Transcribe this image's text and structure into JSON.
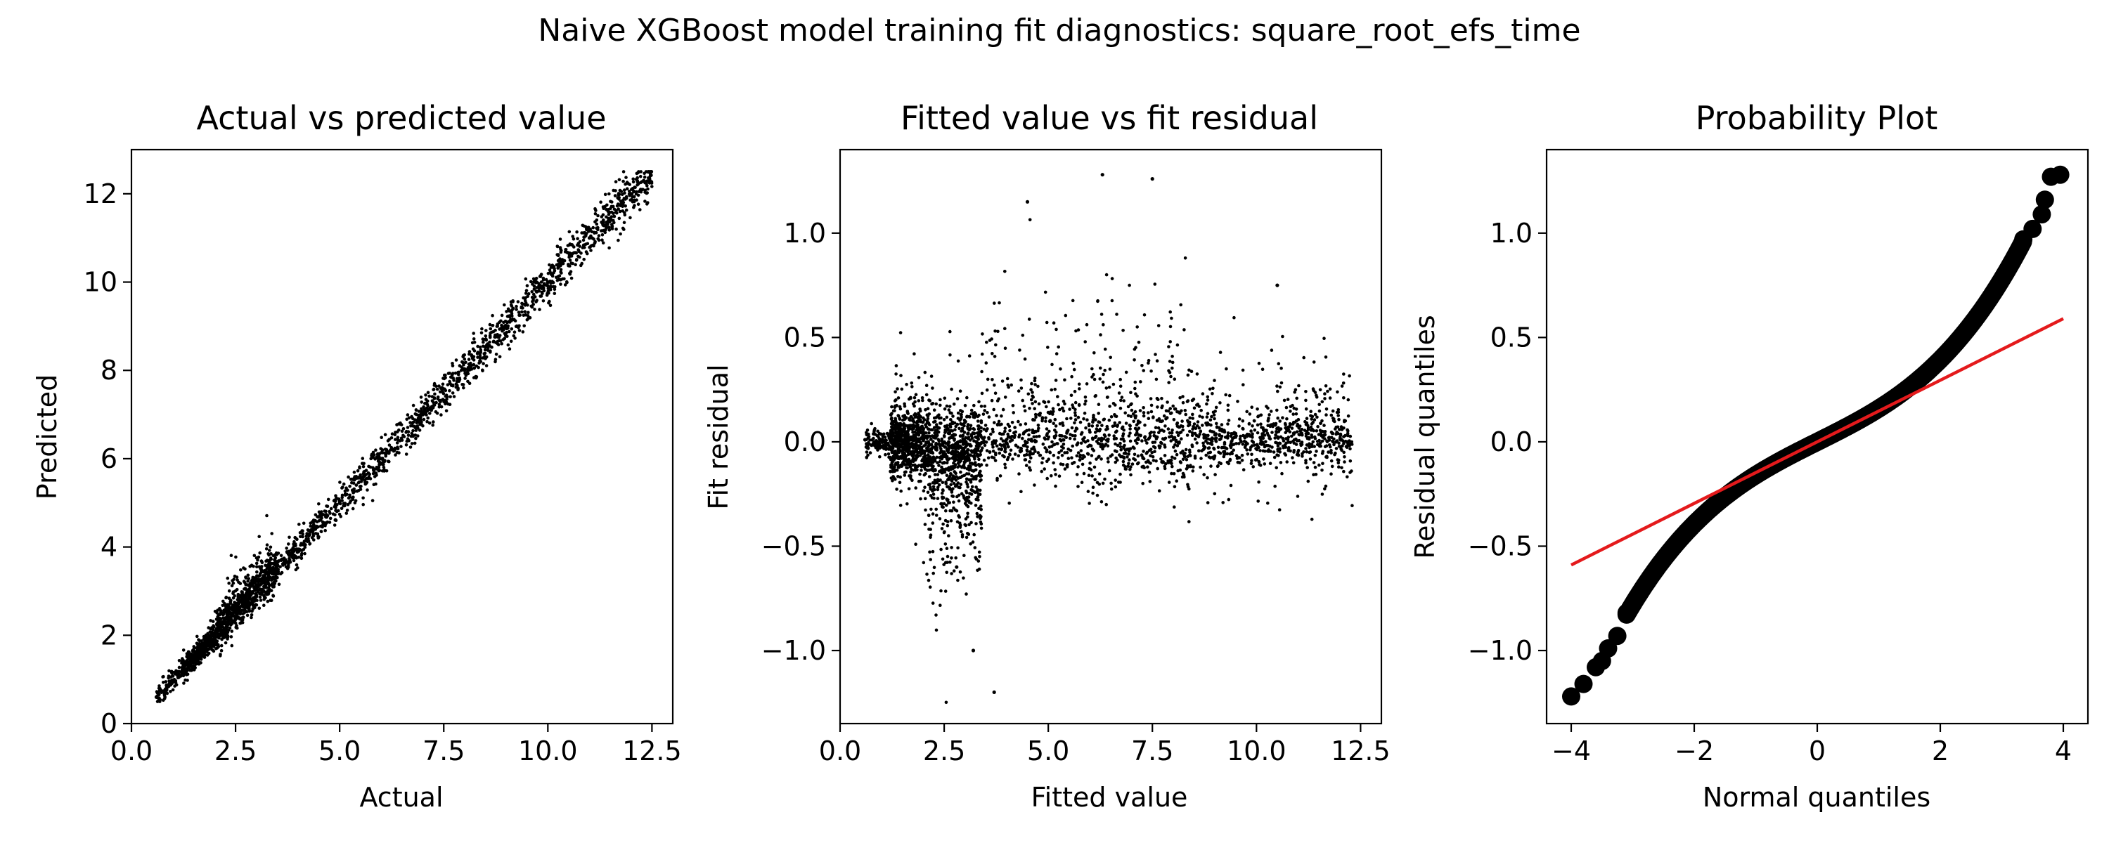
{
  "suptitle": "Naive XGBoost model training fit diagnostics: square_root_efs_time",
  "chart_data": [
    {
      "type": "scatter",
      "title": "Actual vs predicted value",
      "xlabel": "Actual",
      "ylabel": "Predicted",
      "xlim": [
        0.0,
        13.0
      ],
      "ylim": [
        0.0,
        13.0
      ],
      "xticks": [
        0.0,
        2.5,
        5.0,
        7.5,
        10.0,
        12.5
      ],
      "xtick_labels": [
        "0.0",
        "2.5",
        "5.0",
        "7.5",
        "10.0",
        "12.5"
      ],
      "yticks": [
        0,
        2,
        4,
        6,
        8,
        10,
        12
      ],
      "ytick_labels": [
        "0",
        "2",
        "4",
        "6",
        "8",
        "10",
        "12"
      ],
      "grid": false,
      "marker_color": "#000000",
      "sample_points": [
        [
          0.6,
          0.6
        ],
        [
          1.0,
          0.95
        ],
        [
          1.5,
          1.4
        ],
        [
          2.0,
          1.95
        ],
        [
          2.5,
          2.6
        ],
        [
          3.0,
          3.1
        ],
        [
          3.5,
          3.5
        ],
        [
          4.0,
          3.95
        ],
        [
          5.0,
          5.0
        ],
        [
          6.0,
          6.0
        ],
        [
          7.0,
          7.0
        ],
        [
          8.0,
          8.0
        ],
        [
          9.0,
          9.0
        ],
        [
          10.0,
          10.0
        ],
        [
          11.0,
          11.0
        ],
        [
          12.0,
          12.0
        ],
        [
          12.45,
          12.3
        ]
      ]
    },
    {
      "type": "scatter",
      "title": "Fitted value vs fit residual",
      "xlabel": "Fitted value",
      "ylabel": "Fit residual",
      "xlim": [
        0.0,
        13.0
      ],
      "ylim": [
        -1.35,
        1.4
      ],
      "xticks": [
        0.0,
        2.5,
        5.0,
        7.5,
        10.0,
        12.5
      ],
      "xtick_labels": [
        "0.0",
        "2.5",
        "5.0",
        "7.5",
        "10.0",
        "12.5"
      ],
      "yticks": [
        -1.0,
        -0.5,
        0.0,
        0.5,
        1.0
      ],
      "ytick_labels": [
        "−1.0",
        "−0.5",
        "0.0",
        "0.5",
        "1.0"
      ],
      "grid": false,
      "marker_color": "#000000",
      "sample_points": [
        [
          0.6,
          0.01
        ],
        [
          2.5,
          -0.1
        ],
        [
          2.8,
          -0.6
        ],
        [
          3.2,
          -1.0
        ],
        [
          3.7,
          -1.2
        ],
        [
          4.5,
          1.15
        ],
        [
          6.3,
          1.28
        ],
        [
          7.5,
          1.26
        ],
        [
          10.5,
          0.75
        ],
        [
          12.2,
          0.0
        ]
      ]
    },
    {
      "type": "scatter",
      "title": "Probability Plot",
      "xlabel": "Normal quantiles",
      "ylabel": "Residual quantiles",
      "xlim": [
        -4.4,
        4.4
      ],
      "ylim": [
        -1.35,
        1.4
      ],
      "xticks": [
        -4,
        -2,
        0,
        2,
        4
      ],
      "xtick_labels": [
        "−4",
        "−2",
        "0",
        "2",
        "4"
      ],
      "yticks": [
        -1.0,
        -0.5,
        0.0,
        0.5,
        1.0
      ],
      "ytick_labels": [
        "−1.0",
        "−0.5",
        "0.0",
        "0.5",
        "1.0"
      ],
      "grid": false,
      "marker_color": "#000000",
      "fit_line": {
        "x": [
          -4.0,
          4.0
        ],
        "y": [
          -0.59,
          0.59
        ],
        "color": "#e41a1c"
      },
      "outer_points": [
        [
          -4.0,
          -1.22
        ],
        [
          -3.8,
          -1.16
        ],
        [
          -3.6,
          -1.08
        ],
        [
          -3.5,
          -1.05
        ],
        [
          -3.4,
          -0.99
        ],
        [
          -3.25,
          -0.93
        ],
        [
          -3.1,
          -0.82
        ],
        [
          3.35,
          0.97
        ],
        [
          3.5,
          1.02
        ],
        [
          3.65,
          1.09
        ],
        [
          3.7,
          1.16
        ],
        [
          3.8,
          1.27
        ],
        [
          3.95,
          1.28
        ]
      ]
    }
  ]
}
